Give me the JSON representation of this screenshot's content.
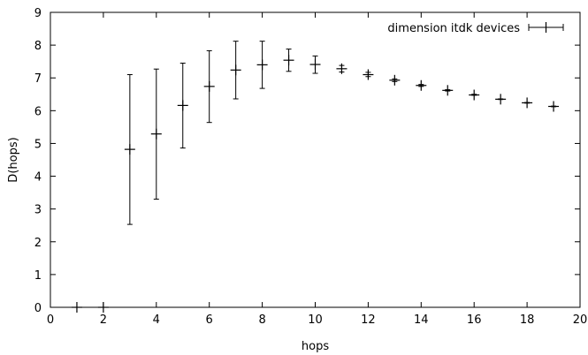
{
  "chart_data": {
    "type": "scatter",
    "title": "",
    "xlabel": "hops",
    "ylabel": "D(hops)",
    "xlim": [
      0,
      20
    ],
    "ylim": [
      0,
      9
    ],
    "xticks": [
      0,
      2,
      4,
      6,
      8,
      10,
      12,
      14,
      16,
      18,
      20
    ],
    "yticks": [
      0,
      1,
      2,
      3,
      4,
      5,
      6,
      7,
      8,
      9
    ],
    "grid": false,
    "legend_position": "top-right",
    "series": [
      {
        "name": "dimension itdk devices",
        "style": "points with vertical error bars",
        "color": "#000000",
        "points": [
          {
            "x": 1,
            "y": 0.0,
            "ylow": 0.0,
            "yhigh": 0.0
          },
          {
            "x": 2,
            "y": 0.0,
            "ylow": 0.0,
            "yhigh": 0.0
          },
          {
            "x": 3,
            "y": 4.82,
            "ylow": 2.53,
            "yhigh": 7.1
          },
          {
            "x": 4,
            "y": 5.29,
            "ylow": 3.3,
            "yhigh": 7.27
          },
          {
            "x": 5,
            "y": 6.16,
            "ylow": 4.86,
            "yhigh": 7.45
          },
          {
            "x": 6,
            "y": 6.74,
            "ylow": 5.64,
            "yhigh": 7.83
          },
          {
            "x": 7,
            "y": 7.24,
            "ylow": 6.36,
            "yhigh": 8.12
          },
          {
            "x": 8,
            "y": 7.4,
            "ylow": 6.68,
            "yhigh": 8.12
          },
          {
            "x": 9,
            "y": 7.54,
            "ylow": 7.2,
            "yhigh": 7.88
          },
          {
            "x": 10,
            "y": 7.41,
            "ylow": 7.14,
            "yhigh": 7.67
          },
          {
            "x": 11,
            "y": 7.28,
            "ylow": 7.18,
            "yhigh": 7.38
          },
          {
            "x": 12,
            "y": 7.1,
            "ylow": 7.04,
            "yhigh": 7.17
          },
          {
            "x": 13,
            "y": 6.93,
            "ylow": 6.89,
            "yhigh": 6.97
          },
          {
            "x": 14,
            "y": 6.77,
            "ylow": 6.74,
            "yhigh": 6.8
          },
          {
            "x": 15,
            "y": 6.62,
            "ylow": 6.6,
            "yhigh": 6.64
          },
          {
            "x": 16,
            "y": 6.48,
            "ylow": 6.47,
            "yhigh": 6.5
          },
          {
            "x": 17,
            "y": 6.35,
            "ylow": 6.34,
            "yhigh": 6.36
          },
          {
            "x": 18,
            "y": 6.24,
            "ylow": 6.23,
            "yhigh": 6.25
          },
          {
            "x": 19,
            "y": 6.13,
            "ylow": 6.12,
            "yhigh": 6.14
          }
        ]
      }
    ]
  }
}
